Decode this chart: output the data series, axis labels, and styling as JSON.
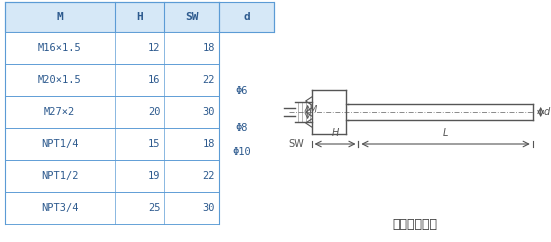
{
  "table_headers": [
    "M",
    "H",
    "SW",
    "d"
  ],
  "table_rows": [
    [
      "M16×1.5",
      "12",
      "18",
      ""
    ],
    [
      "M20×1.5",
      "16",
      "22",
      ""
    ],
    [
      "M27×2",
      "20",
      "30",
      ""
    ],
    [
      "NPT1/4",
      "15",
      "18",
      ""
    ],
    [
      "NPT1/2",
      "19",
      "22",
      ""
    ],
    [
      "NPT3/4",
      "25",
      "30",
      ""
    ]
  ],
  "d_values": [
    "Φ6",
    "Φ8",
    "Φ10"
  ],
  "header_bg": "#d6e8f7",
  "table_line_color": "#5b9bd5",
  "text_color": "#2d5a8e",
  "diagram_line_color": "#555555",
  "caption": "固定螺紋接頭",
  "bg_color": "#ffffff"
}
